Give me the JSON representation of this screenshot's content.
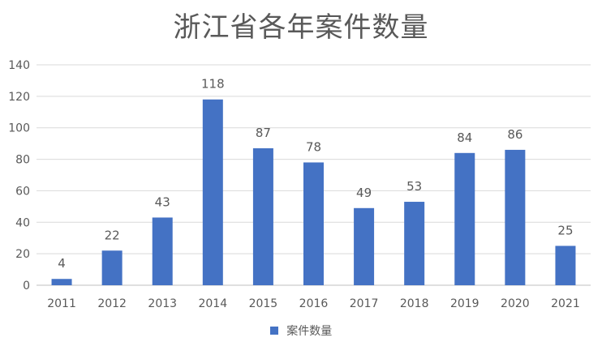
{
  "chart_data": {
    "type": "bar",
    "title": "浙江省各年案件数量",
    "categories": [
      "2011",
      "2012",
      "2013",
      "2014",
      "2015",
      "2016",
      "2017",
      "2018",
      "2019",
      "2020",
      "2021"
    ],
    "series": [
      {
        "name": "案件数量",
        "values": [
          4,
          22,
          43,
          118,
          87,
          78,
          49,
          53,
          84,
          86,
          25
        ]
      }
    ],
    "ylim": [
      0,
      140
    ],
    "yticks": [
      "0",
      "20",
      "40",
      "60",
      "80",
      "100",
      "120",
      "140"
    ],
    "grid": true,
    "data_labels": true,
    "legend_position": "bottom",
    "colors": {
      "bar": "#4472C4",
      "grid": "#D9D9D9",
      "text": "#595959"
    }
  }
}
